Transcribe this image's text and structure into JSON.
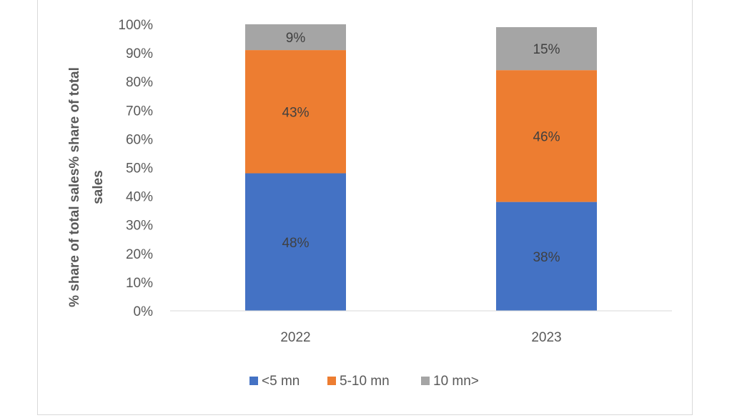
{
  "chart_data": {
    "type": "bar",
    "stacked": true,
    "categories": [
      "2022",
      "2023"
    ],
    "series": [
      {
        "name": "<5 mn",
        "values": [
          48,
          38
        ],
        "color": "#4472c4"
      },
      {
        "name": "5-10 mn",
        "values": [
          43,
          46
        ],
        "color": "#ed7d31"
      },
      {
        "name": "10 mn>",
        "values": [
          9,
          15
        ],
        "color": "#a5a5a5"
      }
    ],
    "data_labels": [
      [
        "48%",
        "38%"
      ],
      [
        "43%",
        "46%"
      ],
      [
        "9%",
        "15%"
      ]
    ],
    "yticks": [
      "0%",
      "10%",
      "20%",
      "30%",
      "40%",
      "50%",
      "60%",
      "70%",
      "80%",
      "90%",
      "100%"
    ],
    "ylim": [
      0,
      100
    ],
    "ylabel_lines": [
      "% share of total sales% share of total",
      "sales"
    ],
    "legend_position": "bottom",
    "grid": false
  }
}
